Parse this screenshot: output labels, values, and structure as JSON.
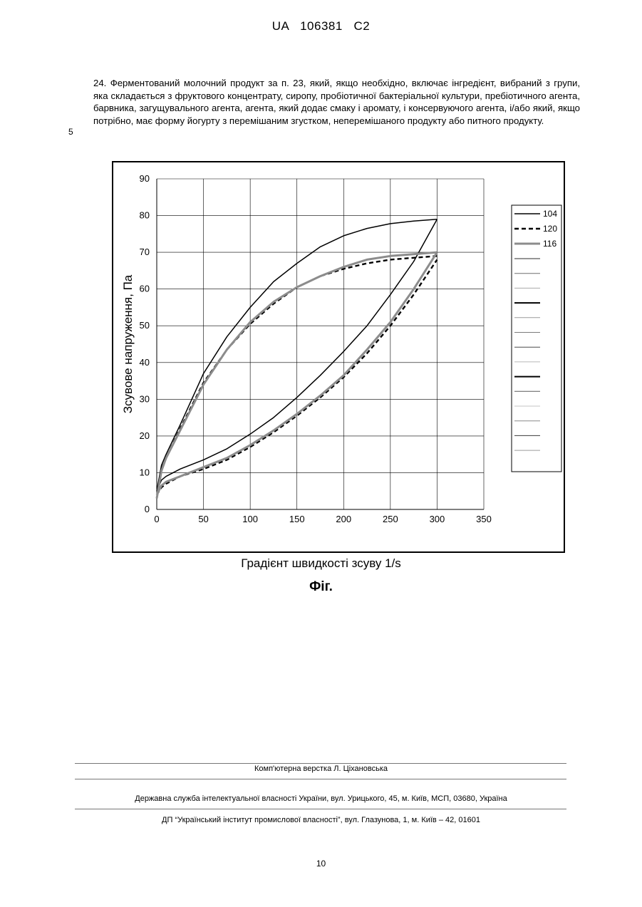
{
  "header": {
    "doc_id": "UA   106381   C2"
  },
  "body": {
    "paragraph": "24. Ферментований молочний продукт за п. 23, який, якщо необхідно, включає інгредієнт, вибраний з групи, яка складається з фруктового концентрату, сиропу, пробіотичної бактеріальної культури, пребіотичного агента, барвника, загущувального агента, агента, який додає смаку і аромату, і консервуючого агента, і/або який, якщо потрібно, має форму йогурту з перемішаним згустком, неперемішаного продукту або питного продукту.",
    "line_number": "5"
  },
  "figure": {
    "caption": "Фіг.",
    "xlabel": "Градієнт швидкості зсуву 1/s"
  },
  "chart_data": {
    "type": "line",
    "xlabel": "Градієнт швидкості зсуву 1/s",
    "ylabel": "Зсувове напруження, Па",
    "xlim": [
      0,
      350
    ],
    "ylim": [
      0,
      90
    ],
    "xticks": [
      0,
      50,
      100,
      150,
      200,
      250,
      300,
      350
    ],
    "yticks": [
      0,
      10,
      20,
      30,
      40,
      50,
      60,
      70,
      80,
      90
    ],
    "grid": true,
    "legend_position": "right",
    "series": [
      {
        "name": "104",
        "color": "#000000",
        "style": "solid-thin",
        "up": {
          "x": [
            0,
            5,
            10,
            25,
            50,
            75,
            100,
            125,
            150,
            175,
            200,
            225,
            250,
            275,
            300
          ],
          "y": [
            5,
            8,
            9,
            11,
            13.5,
            16.5,
            20.5,
            25,
            30.5,
            36.5,
            43,
            50,
            58.5,
            67.5,
            79
          ]
        },
        "down": {
          "x": [
            300,
            275,
            250,
            225,
            200,
            175,
            150,
            125,
            100,
            75,
            50,
            25,
            10,
            5,
            0
          ],
          "y": [
            79,
            78.5,
            77.8,
            76.5,
            74.5,
            71.5,
            67,
            62,
            55,
            47,
            37,
            23,
            15,
            12,
            5
          ]
        }
      },
      {
        "name": "120",
        "color": "#000000",
        "style": "dashed",
        "up": {
          "x": [
            0,
            5,
            10,
            25,
            50,
            75,
            100,
            125,
            150,
            175,
            200,
            225,
            250,
            275,
            300
          ],
          "y": [
            4,
            6,
            7,
            9,
            11,
            13.5,
            17,
            21,
            25.5,
            30.5,
            36,
            42.5,
            50,
            58.5,
            68
          ]
        },
        "down": {
          "x": [
            300,
            275,
            250,
            225,
            200,
            175,
            150,
            125,
            100,
            75,
            50,
            25,
            10,
            5,
            0
          ],
          "y": [
            69,
            68.5,
            68,
            67,
            65.5,
            63.5,
            60.5,
            56,
            50.5,
            43.5,
            34.5,
            22,
            14,
            11,
            3
          ]
        }
      },
      {
        "name": "116",
        "color": "#8c8c8c",
        "style": "solid-thick",
        "up": {
          "x": [
            0,
            5,
            10,
            25,
            50,
            75,
            100,
            125,
            150,
            175,
            200,
            225,
            250,
            275,
            300
          ],
          "y": [
            4,
            6.5,
            7.5,
            9,
            11.5,
            14,
            17.5,
            21.5,
            26,
            31,
            36.5,
            43.5,
            51,
            60,
            70
          ]
        },
        "down": {
          "x": [
            300,
            275,
            250,
            225,
            200,
            175,
            150,
            125,
            100,
            75,
            50,
            25,
            10,
            5,
            0
          ],
          "y": [
            70,
            69.5,
            69,
            68,
            66,
            63.5,
            60.5,
            56.5,
            51,
            43.5,
            34,
            21.5,
            14,
            10.5,
            3
          ]
        }
      }
    ],
    "legend_extra_swatches": [
      "#2b2b2b",
      "#6f6f6f",
      "#a8a8a8",
      "#000000",
      "#9a9a9a",
      "#7a7a7a",
      "#4a4a4a",
      "#b8b8b8",
      "#000000",
      "#5a5a5a",
      "#c4c4c4",
      "#8a8a8a",
      "#3a3a3a",
      "#9a9a9a"
    ]
  },
  "footer": {
    "layout_credit": "Комп'ютерна верстка Л. Ціхановська",
    "state_service": "Державна служба інтелектуальної власності України, вул. Урицького, 45, м. Київ, МСП, 03680, Україна",
    "institute": "ДП “Український інститут промислової власності”, вул. Глазунова, 1, м. Київ – 42, 01601",
    "page_number": "10"
  }
}
